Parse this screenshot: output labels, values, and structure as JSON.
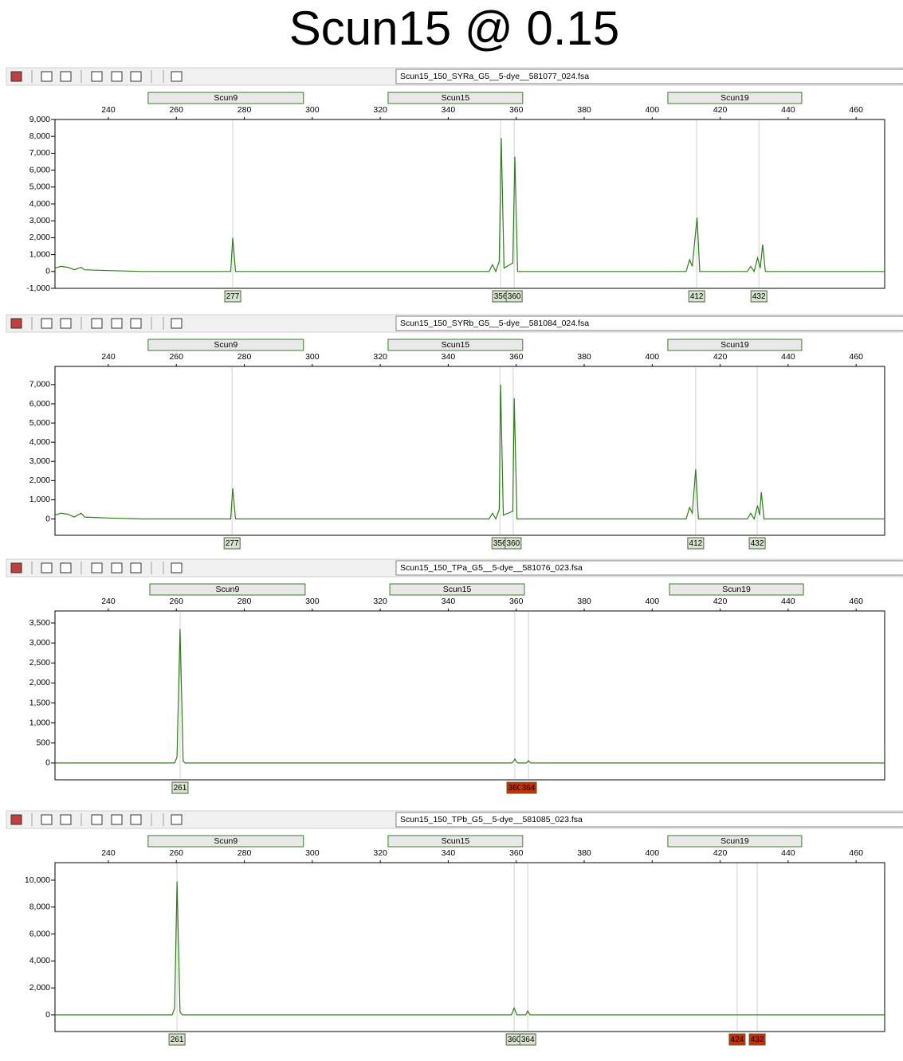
{
  "title": "Scun15 @ 0.15",
  "chart_data": [
    {
      "type": "line",
      "file": "Scun15_150_SYRa_G5__5-dye__581077_024.fsa",
      "color": "#2e7d1a",
      "xlim": [
        224.3,
        468.4
      ],
      "xticks": [
        240,
        260,
        280,
        300,
        320,
        340,
        360,
        380,
        400,
        420,
        440,
        460
      ],
      "ylim": [
        -1000,
        9000
      ],
      "yticks": [
        {
          "value": -1000,
          "label": "-1,000"
        },
        0,
        {
          "value": 1000,
          "label": "1,000"
        },
        {
          "value": 2000,
          "label": "2,000"
        },
        {
          "value": 3000,
          "label": "3,000"
        },
        {
          "value": 4000,
          "label": "4,000"
        },
        {
          "value": 5000,
          "label": "5,000"
        },
        {
          "value": 6000,
          "label": "6,000"
        },
        {
          "value": 7000,
          "label": "7,000"
        },
        {
          "value": 8000,
          "label": "8,000"
        },
        {
          "value": 9000,
          "label": "9,000"
        }
      ],
      "bins": [
        {
          "name": "Scun9",
          "range": [
            251.7,
            297.4
          ]
        },
        {
          "name": "Scun15",
          "range": [
            322.3,
            361.9
          ]
        },
        {
          "name": "Scun19",
          "range": [
            404.6,
            444
          ]
        }
      ],
      "alleles": [
        {
          "label": 277,
          "x": 276.6,
          "color": "#d8e4d0"
        },
        {
          "label": 356,
          "x": 355.4,
          "color": "#d8e4d0"
        },
        {
          "label": 360,
          "x": 359.4,
          "color": "#d8e4d0"
        },
        {
          "label": 412,
          "x": 413.1,
          "color": "#d8e4d0"
        },
        {
          "label": 432,
          "x": 431.4,
          "color": "#d8e4d0"
        }
      ],
      "x": [
        224.3,
        226,
        228,
        230,
        232,
        233,
        240,
        250,
        276,
        276.6,
        277.4,
        300,
        352,
        353,
        354,
        355,
        355.6,
        356.4,
        359,
        359.6,
        360.4,
        410,
        411,
        411.8,
        413.2,
        414,
        428,
        429,
        430,
        431,
        431.8,
        432.5,
        433.3,
        468.4
      ],
      "y": [
        200,
        300,
        250,
        100,
        250,
        100,
        50,
        0,
        0,
        2000,
        0,
        0,
        0,
        400,
        0,
        600,
        7900,
        200,
        500,
        6800,
        0,
        0,
        700,
        300,
        3200,
        0,
        0,
        300,
        0,
        800,
        200,
        1600,
        0,
        0
      ]
    },
    {
      "type": "line",
      "file": "Scun15_150_SYRb_G5__5-dye__581084_024.fsa",
      "color": "#2e7d1a",
      "xlim": [
        224.3,
        468.4
      ],
      "xticks": [
        240,
        260,
        280,
        300,
        320,
        340,
        360,
        380,
        400,
        420,
        440,
        460
      ],
      "ylim": [
        -850,
        7950
      ],
      "yticks": [
        0,
        {
          "value": 1000,
          "label": "1,000"
        },
        {
          "value": 2000,
          "label": "2,000"
        },
        {
          "value": 3000,
          "label": "3,000"
        },
        {
          "value": 4000,
          "label": "4,000"
        },
        {
          "value": 5000,
          "label": "5,000"
        },
        {
          "value": 6000,
          "label": "6,000"
        },
        {
          "value": 7000,
          "label": "7,000"
        }
      ],
      "bins": [
        {
          "name": "Scun9",
          "range": [
            251.7,
            297.4
          ]
        },
        {
          "name": "Scun15",
          "range": [
            322.3,
            361.9
          ]
        },
        {
          "name": "Scun19",
          "range": [
            404.6,
            444
          ]
        }
      ],
      "alleles": [
        {
          "label": 277,
          "x": 276.4,
          "color": "#d8e4d0"
        },
        {
          "label": 356,
          "x": 355.2,
          "color": "#d8e4d0"
        },
        {
          "label": 360,
          "x": 359.1,
          "color": "#d8e4d0"
        },
        {
          "label": 412,
          "x": 412.8,
          "color": "#d8e4d0"
        },
        {
          "label": 432,
          "x": 430.9,
          "color": "#d8e4d0"
        }
      ],
      "x": [
        224.3,
        226,
        228,
        230,
        232,
        233,
        240,
        250,
        276,
        276.6,
        277.4,
        300,
        352,
        353,
        354,
        355,
        355.4,
        356.2,
        359,
        359.4,
        360.2,
        410,
        411,
        411.8,
        412.8,
        413.6,
        428,
        429,
        430,
        431,
        431.6,
        432.1,
        432.9,
        468.4
      ],
      "y": [
        200,
        300,
        250,
        100,
        300,
        100,
        50,
        0,
        0,
        1600,
        0,
        0,
        0,
        300,
        0,
        500,
        7000,
        200,
        400,
        6300,
        0,
        0,
        600,
        300,
        2600,
        0,
        0,
        300,
        0,
        700,
        200,
        1400,
        0,
        0
      ]
    },
    {
      "type": "line",
      "file": "Scun15_150_TPa_G5__5-dye__581076_023.fsa",
      "color": "#2e7d1a",
      "xlim": [
        224.3,
        468.4
      ],
      "xticks": [
        240,
        260,
        280,
        300,
        320,
        340,
        360,
        380,
        400,
        420,
        440,
        460
      ],
      "ylim": [
        -420,
        3800
      ],
      "yticks": [
        0,
        500,
        {
          "value": 1000,
          "label": "1,000"
        },
        {
          "value": 1500,
          "label": "1,500"
        },
        {
          "value": 2000,
          "label": "2,000"
        },
        {
          "value": 2500,
          "label": "2,500"
        },
        {
          "value": 3000,
          "label": "3,000"
        },
        {
          "value": 3500,
          "label": "3,500"
        }
      ],
      "bins": [
        {
          "name": "Scun9",
          "range": [
            252.2,
            297.9
          ]
        },
        {
          "name": "Scun15",
          "range": [
            322.8,
            362.4
          ]
        },
        {
          "name": "Scun19",
          "range": [
            405.1,
            444.5
          ]
        }
      ],
      "alleles": [
        {
          "label": 261,
          "x": 261.1,
          "color": "#d8e4d0"
        },
        {
          "label": 360,
          "x": 359.6,
          "color": "#c83000"
        },
        {
          "label": 364,
          "x": 363.6,
          "color": "#c83000"
        }
      ],
      "x": [
        224.3,
        250,
        259.5,
        260.2,
        261.1,
        262,
        262.6,
        300,
        358.8,
        359.6,
        360.4,
        363,
        363.6,
        364.2,
        468.4
      ],
      "y": [
        0,
        0,
        0,
        150,
        3350,
        50,
        0,
        0,
        0,
        100,
        0,
        0,
        60,
        0,
        0
      ]
    },
    {
      "type": "line",
      "file": "Scun15_150_TPb_G5__5-dye__581085_023.fsa",
      "color": "#2e7d1a",
      "xlim": [
        224.3,
        468.4
      ],
      "xticks": [
        240,
        260,
        280,
        300,
        320,
        340,
        360,
        380,
        400,
        420,
        440,
        460
      ],
      "ylim": [
        -1240,
        11300
      ],
      "yticks": [
        0,
        {
          "value": 2000,
          "label": "2,000"
        },
        {
          "value": 4000,
          "label": "4,000"
        },
        {
          "value": 6000,
          "label": "6,000"
        },
        {
          "value": 8000,
          "label": "8,000"
        },
        {
          "value": 10000,
          "label": "10,000"
        }
      ],
      "bins": [
        {
          "name": "Scun9",
          "range": [
            251.7,
            297.4
          ]
        },
        {
          "name": "Scun15",
          "range": [
            322.3,
            361.9
          ]
        },
        {
          "name": "Scun19",
          "range": [
            404.6,
            444
          ]
        }
      ],
      "alleles": [
        {
          "label": 261,
          "x": 260.2,
          "color": "#d8e4d0"
        },
        {
          "label": 360,
          "x": 359.4,
          "color": "#d8e4d0"
        },
        {
          "label": 364,
          "x": 363.4,
          "color": "#d8e4d0"
        },
        {
          "label": 424,
          "x": 425.0,
          "color": "#c83000"
        },
        {
          "label": 432,
          "x": 430.9,
          "color": "#c83000"
        }
      ],
      "x": [
        224.3,
        250,
        258.8,
        259.5,
        260.2,
        261.1,
        261.8,
        300,
        358.6,
        359.4,
        360.2,
        362.8,
        363.4,
        364,
        468.4
      ],
      "y": [
        0,
        0,
        0,
        500,
        9900,
        200,
        0,
        0,
        0,
        500,
        0,
        0,
        300,
        0,
        0
      ]
    }
  ]
}
